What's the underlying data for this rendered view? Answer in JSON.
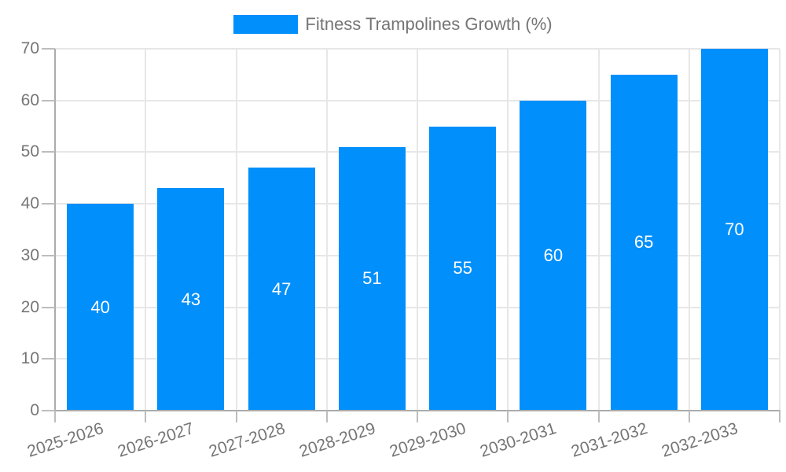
{
  "legend": {
    "label": "Fitness Trampolines Growth (%)"
  },
  "chart_data": {
    "type": "bar",
    "title": "Fitness Trampolines Growth (%)",
    "series_name": "Fitness Trampolines Growth (%)",
    "categories": [
      "2025-2026",
      "2026-2027",
      "2027-2028",
      "2028-2029",
      "2029-2030",
      "2030-2031",
      "2031-2032",
      "2032-2033"
    ],
    "values": [
      40,
      43,
      47,
      51,
      55,
      60,
      65,
      70
    ],
    "value_labels": [
      "40",
      "43",
      "47",
      "51",
      "55",
      "60",
      "65",
      "70"
    ],
    "xlabel": "",
    "ylabel": "",
    "ylim": [
      0,
      70
    ],
    "yticks": [
      0,
      10,
      20,
      30,
      40,
      50,
      60,
      70
    ],
    "grid": true,
    "legend_position": "top-center",
    "bar_color": "#008FFB",
    "value_label_color": "#ffffff",
    "axis_text_color": "#757575",
    "gridline_color": "#e7e7e7",
    "axis_line_color": "#ababab",
    "background_color": "#ffffff"
  }
}
